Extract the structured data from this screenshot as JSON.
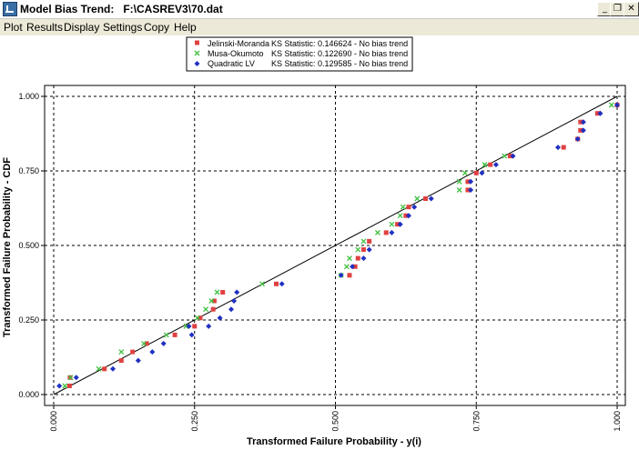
{
  "window": {
    "title": "Model Bias Trend:   F:\\CASREV3\\70.dat",
    "controls": [
      "_",
      "❐",
      "✕"
    ]
  },
  "menu": [
    "Plot",
    "Results",
    "Display",
    "Settings",
    "Copy",
    "Help"
  ],
  "chart_data": {
    "type": "scatter",
    "xlabel": "Transformed Failure Probability - y(i)",
    "ylabel": "Transformed Failure Probability - CDF",
    "xlim": [
      0,
      1
    ],
    "ylim": [
      0,
      1
    ],
    "xticks": [
      "0.000",
      "0.250",
      "0.500",
      "0.750",
      "1.000"
    ],
    "yticks": [
      "0.000",
      "0.250",
      "0.500",
      "0.750",
      "1.000"
    ],
    "grid": true,
    "reference_line": [
      [
        0,
        0
      ],
      [
        1,
        1
      ]
    ],
    "legend": [
      {
        "name": "Jelinski-Moranda",
        "marker": "square",
        "color": "#e04040",
        "stat": "KS Statistic: 0.146624 - No bias trend"
      },
      {
        "name": "Musa-Okumoto",
        "marker": "x",
        "color": "#40c040",
        "stat": "KS Statistic: 0.122690 - No bias trend"
      },
      {
        "name": "Quadratic LV",
        "marker": "diamond",
        "color": "#2030c0",
        "stat": "KS Statistic: 0.129585 - No bias trend"
      }
    ],
    "series": [
      {
        "name": "Jelinski-Moranda",
        "points": [
          [
            0.028,
            0.029
          ],
          [
            0.029,
            0.057
          ],
          [
            0.09,
            0.086
          ],
          [
            0.12,
            0.114
          ],
          [
            0.14,
            0.143
          ],
          [
            0.165,
            0.171
          ],
          [
            0.215,
            0.2
          ],
          [
            0.25,
            0.229
          ],
          [
            0.26,
            0.257
          ],
          [
            0.283,
            0.286
          ],
          [
            0.285,
            0.314
          ],
          [
            0.3,
            0.343
          ],
          [
            0.395,
            0.371
          ],
          [
            0.525,
            0.4
          ],
          [
            0.535,
            0.429
          ],
          [
            0.54,
            0.457
          ],
          [
            0.55,
            0.486
          ],
          [
            0.56,
            0.514
          ],
          [
            0.59,
            0.543
          ],
          [
            0.61,
            0.571
          ],
          [
            0.625,
            0.6
          ],
          [
            0.63,
            0.629
          ],
          [
            0.66,
            0.657
          ],
          [
            0.735,
            0.686
          ],
          [
            0.735,
            0.714
          ],
          [
            0.75,
            0.743
          ],
          [
            0.775,
            0.771
          ],
          [
            0.81,
            0.8
          ],
          [
            0.905,
            0.829
          ],
          [
            0.93,
            0.857
          ],
          [
            0.935,
            0.886
          ],
          [
            0.935,
            0.914
          ],
          [
            0.965,
            0.943
          ],
          [
            1.0,
            0.971
          ]
        ]
      },
      {
        "name": "Musa-Okumoto",
        "points": [
          [
            0.02,
            0.029
          ],
          [
            0.03,
            0.057
          ],
          [
            0.08,
            0.086
          ],
          [
            0.12,
            0.143
          ],
          [
            0.16,
            0.171
          ],
          [
            0.2,
            0.2
          ],
          [
            0.235,
            0.229
          ],
          [
            0.255,
            0.257
          ],
          [
            0.27,
            0.286
          ],
          [
            0.28,
            0.314
          ],
          [
            0.29,
            0.343
          ],
          [
            0.37,
            0.371
          ],
          [
            0.51,
            0.4
          ],
          [
            0.52,
            0.429
          ],
          [
            0.525,
            0.457
          ],
          [
            0.54,
            0.486
          ],
          [
            0.55,
            0.514
          ],
          [
            0.575,
            0.543
          ],
          [
            0.6,
            0.571
          ],
          [
            0.615,
            0.6
          ],
          [
            0.62,
            0.629
          ],
          [
            0.645,
            0.657
          ],
          [
            0.72,
            0.686
          ],
          [
            0.72,
            0.714
          ],
          [
            0.73,
            0.743
          ],
          [
            0.765,
            0.771
          ],
          [
            0.8,
            0.8
          ],
          [
            0.99,
            0.971
          ]
        ]
      },
      {
        "name": "Quadratic LV",
        "points": [
          [
            0.01,
            0.029
          ],
          [
            0.04,
            0.057
          ],
          [
            0.105,
            0.086
          ],
          [
            0.15,
            0.114
          ],
          [
            0.175,
            0.143
          ],
          [
            0.195,
            0.171
          ],
          [
            0.245,
            0.2
          ],
          [
            0.24,
            0.229
          ],
          [
            0.275,
            0.229
          ],
          [
            0.295,
            0.257
          ],
          [
            0.315,
            0.286
          ],
          [
            0.32,
            0.314
          ],
          [
            0.325,
            0.343
          ],
          [
            0.405,
            0.371
          ],
          [
            0.51,
            0.4
          ],
          [
            0.53,
            0.429
          ],
          [
            0.55,
            0.457
          ],
          [
            0.56,
            0.486
          ],
          [
            0.6,
            0.543
          ],
          [
            0.615,
            0.571
          ],
          [
            0.63,
            0.6
          ],
          [
            0.64,
            0.629
          ],
          [
            0.67,
            0.657
          ],
          [
            0.74,
            0.686
          ],
          [
            0.74,
            0.714
          ],
          [
            0.76,
            0.743
          ],
          [
            0.785,
            0.771
          ],
          [
            0.815,
            0.8
          ],
          [
            0.895,
            0.829
          ],
          [
            0.93,
            0.857
          ],
          [
            0.94,
            0.886
          ],
          [
            0.94,
            0.914
          ],
          [
            0.97,
            0.943
          ],
          [
            1.0,
            0.971
          ]
        ]
      }
    ]
  }
}
